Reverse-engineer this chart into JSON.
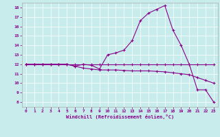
{
  "title": "",
  "xlabel": "Windchill (Refroidissement éolien,°C)",
  "background_color": "#c8ecec",
  "line_color": "#880088",
  "marker": "+",
  "markersize": 3,
  "linewidth": 0.8,
  "markeredgewidth": 0.8,
  "xlim": [
    -0.5,
    23.5
  ],
  "ylim": [
    7.5,
    18.5
  ],
  "yticks": [
    8,
    9,
    10,
    11,
    12,
    13,
    14,
    15,
    16,
    17,
    18
  ],
  "xticks": [
    0,
    1,
    2,
    3,
    4,
    5,
    6,
    7,
    8,
    9,
    10,
    11,
    12,
    13,
    14,
    15,
    16,
    17,
    18,
    19,
    20,
    21,
    22,
    23
  ],
  "line1_x": [
    0,
    1,
    2,
    3,
    4,
    5,
    6,
    7,
    8,
    9,
    10,
    11,
    12,
    13,
    14,
    15,
    16,
    17,
    18,
    19,
    20,
    21,
    22,
    23
  ],
  "line1_y": [
    12,
    12,
    12,
    12,
    12,
    12,
    12,
    12,
    12,
    12,
    12,
    12,
    12,
    12,
    12,
    12,
    12,
    12,
    12,
    12,
    12,
    12,
    12,
    12
  ],
  "line2_x": [
    0,
    1,
    2,
    3,
    4,
    5,
    6,
    7,
    8,
    9,
    10,
    11,
    12,
    13,
    14,
    15,
    16,
    17,
    18,
    19,
    20,
    21,
    22,
    23
  ],
  "line2_y": [
    12,
    12,
    12,
    12,
    12,
    12,
    11.8,
    11.6,
    11.5,
    11.4,
    11.4,
    11.4,
    11.35,
    11.3,
    11.3,
    11.3,
    11.25,
    11.2,
    11.1,
    11.0,
    10.9,
    10.6,
    10.3,
    10.0
  ],
  "line3_x": [
    0,
    1,
    2,
    3,
    4,
    5,
    6,
    7,
    8,
    9,
    10,
    11,
    12,
    13,
    14,
    15,
    16,
    17,
    18,
    19,
    20,
    21,
    22,
    23
  ],
  "line3_y": [
    12,
    12,
    12,
    12,
    12,
    12,
    11.8,
    12.0,
    11.9,
    11.5,
    13.0,
    13.2,
    13.5,
    14.5,
    16.6,
    17.4,
    17.8,
    18.2,
    15.6,
    14.0,
    12.0,
    9.3,
    9.3,
    8.0
  ]
}
